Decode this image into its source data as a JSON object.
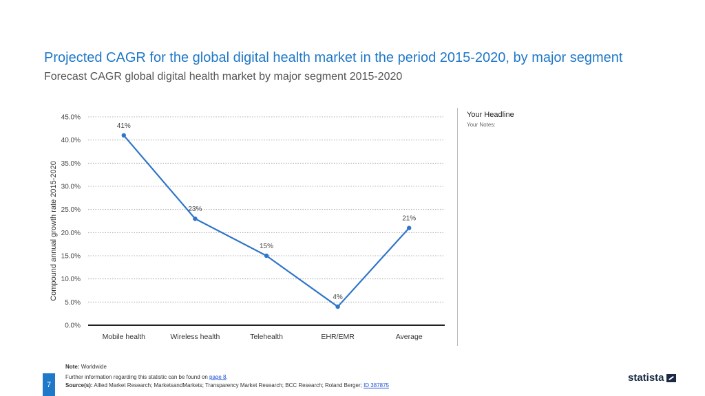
{
  "header": {
    "title": "Projected CAGR for the global digital health market in the period 2015-2020, by major segment",
    "subtitle": "Forecast CAGR global digital health market by major segment 2015-2020"
  },
  "side_panel": {
    "headline": "Your Headline",
    "notes": "Your Notes:"
  },
  "chart_data": {
    "type": "line",
    "title": "Projected CAGR for the global digital health market in the period 2015-2020, by major segment",
    "xlabel": "",
    "ylabel": "Compound annual growth rate 2015-2020",
    "categories": [
      "Mobile health",
      "Wireless health",
      "Telehealth",
      "EHR/EMR",
      "Average"
    ],
    "values": [
      41,
      23,
      15,
      4,
      21
    ],
    "data_labels": [
      "41%",
      "23%",
      "15%",
      "4%",
      "21%"
    ],
    "ylim": [
      0,
      45
    ],
    "yticks": [
      0,
      5,
      10,
      15,
      20,
      25,
      30,
      35,
      40,
      45
    ],
    "ytick_labels": [
      "0.0%",
      "5.0%",
      "10.0%",
      "15.0%",
      "20.0%",
      "25.0%",
      "30.0%",
      "35.0%",
      "40.0%",
      "45.0%"
    ],
    "grid": true,
    "line_color": "#2f75c9"
  },
  "footer": {
    "note_label": "Note:",
    "note_text": "Worldwide",
    "further_info": "Further information regarding this statistic can be found on",
    "page_link": "page 8",
    "sources_label": "Source(s):",
    "sources_text": "Allied Market Research; MarketsandMarkets; Transparency Market Research; BCC Research; Roland Berger;",
    "id_link": "ID 387875"
  },
  "page_number": "7",
  "logo": {
    "text": "statista"
  }
}
